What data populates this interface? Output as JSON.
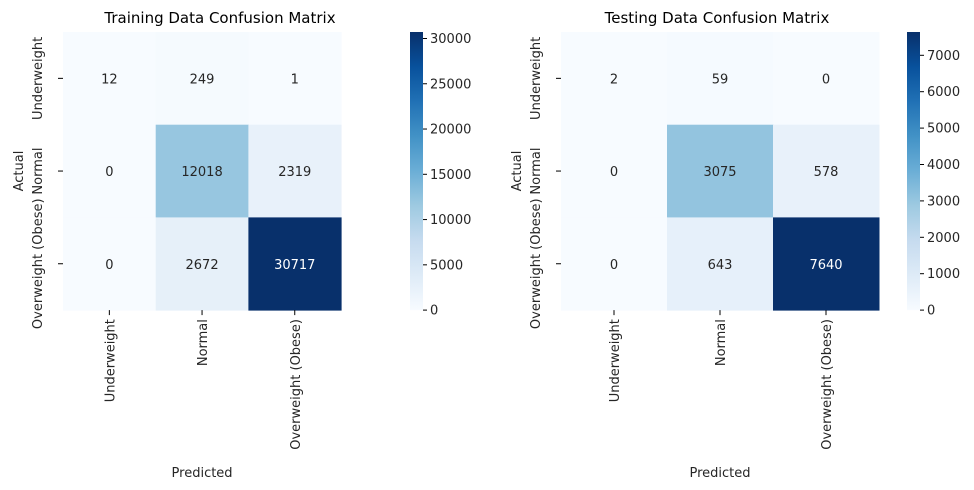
{
  "chart_data": [
    {
      "type": "heatmap",
      "title": "Training Data Confusion Matrix",
      "xlabel": "Predicted",
      "ylabel": "Actual",
      "x_categories": [
        "Underweight",
        "Normal",
        "Overweight (Obese)"
      ],
      "y_categories": [
        "Underweight",
        "Normal",
        "Overweight (Obese)"
      ],
      "values": [
        [
          12,
          249,
          1
        ],
        [
          0,
          12018,
          2319
        ],
        [
          0,
          2672,
          30717
        ]
      ],
      "colormap": "Blues",
      "colorbar": {
        "min": 0,
        "max": 30717,
        "ticks": [
          0,
          5000,
          10000,
          15000,
          20000,
          25000,
          30000
        ]
      }
    },
    {
      "type": "heatmap",
      "title": "Testing Data Confusion Matrix",
      "xlabel": "Predicted",
      "ylabel": "Actual",
      "x_categories": [
        "Underweight",
        "Normal",
        "Overweight (Obese)"
      ],
      "y_categories": [
        "Underweight",
        "Normal",
        "Overweight (Obese)"
      ],
      "values": [
        [
          2,
          59,
          0
        ],
        [
          0,
          3075,
          578
        ],
        [
          0,
          643,
          7640
        ]
      ],
      "colormap": "Blues",
      "colorbar": {
        "min": 0,
        "max": 7640,
        "ticks": [
          0,
          1000,
          2000,
          3000,
          4000,
          5000,
          6000,
          7000
        ]
      }
    }
  ]
}
